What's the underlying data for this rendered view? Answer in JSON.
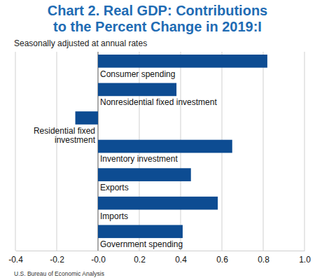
{
  "chart_data": {
    "type": "bar",
    "orientation": "horizontal",
    "title": "Chart 2. Real GDP: Contributions to the Percent Change in 2019:I",
    "subtitle": "Seasonally adjusted at annual rates",
    "source": "U.S. Bureau of Economic Analysis",
    "categories": [
      "Consumer spending",
      "Nonresidential fixed investment",
      "Residential fixed investment",
      "Inventory investment",
      "Exports",
      "Imports",
      "Government spending"
    ],
    "values": [
      0.82,
      0.38,
      -0.11,
      0.65,
      0.45,
      0.58,
      0.41
    ],
    "color": "#0d4c92",
    "xlim": [
      -0.4,
      1.0
    ],
    "xticks": [
      -0.4,
      -0.2,
      {
        "value": 0,
        "label": "-0.0"
      },
      0.2,
      0.4,
      0.6,
      0.8,
      {
        "value": 1.0,
        "label": "1.0"
      }
    ],
    "grid": true
  }
}
